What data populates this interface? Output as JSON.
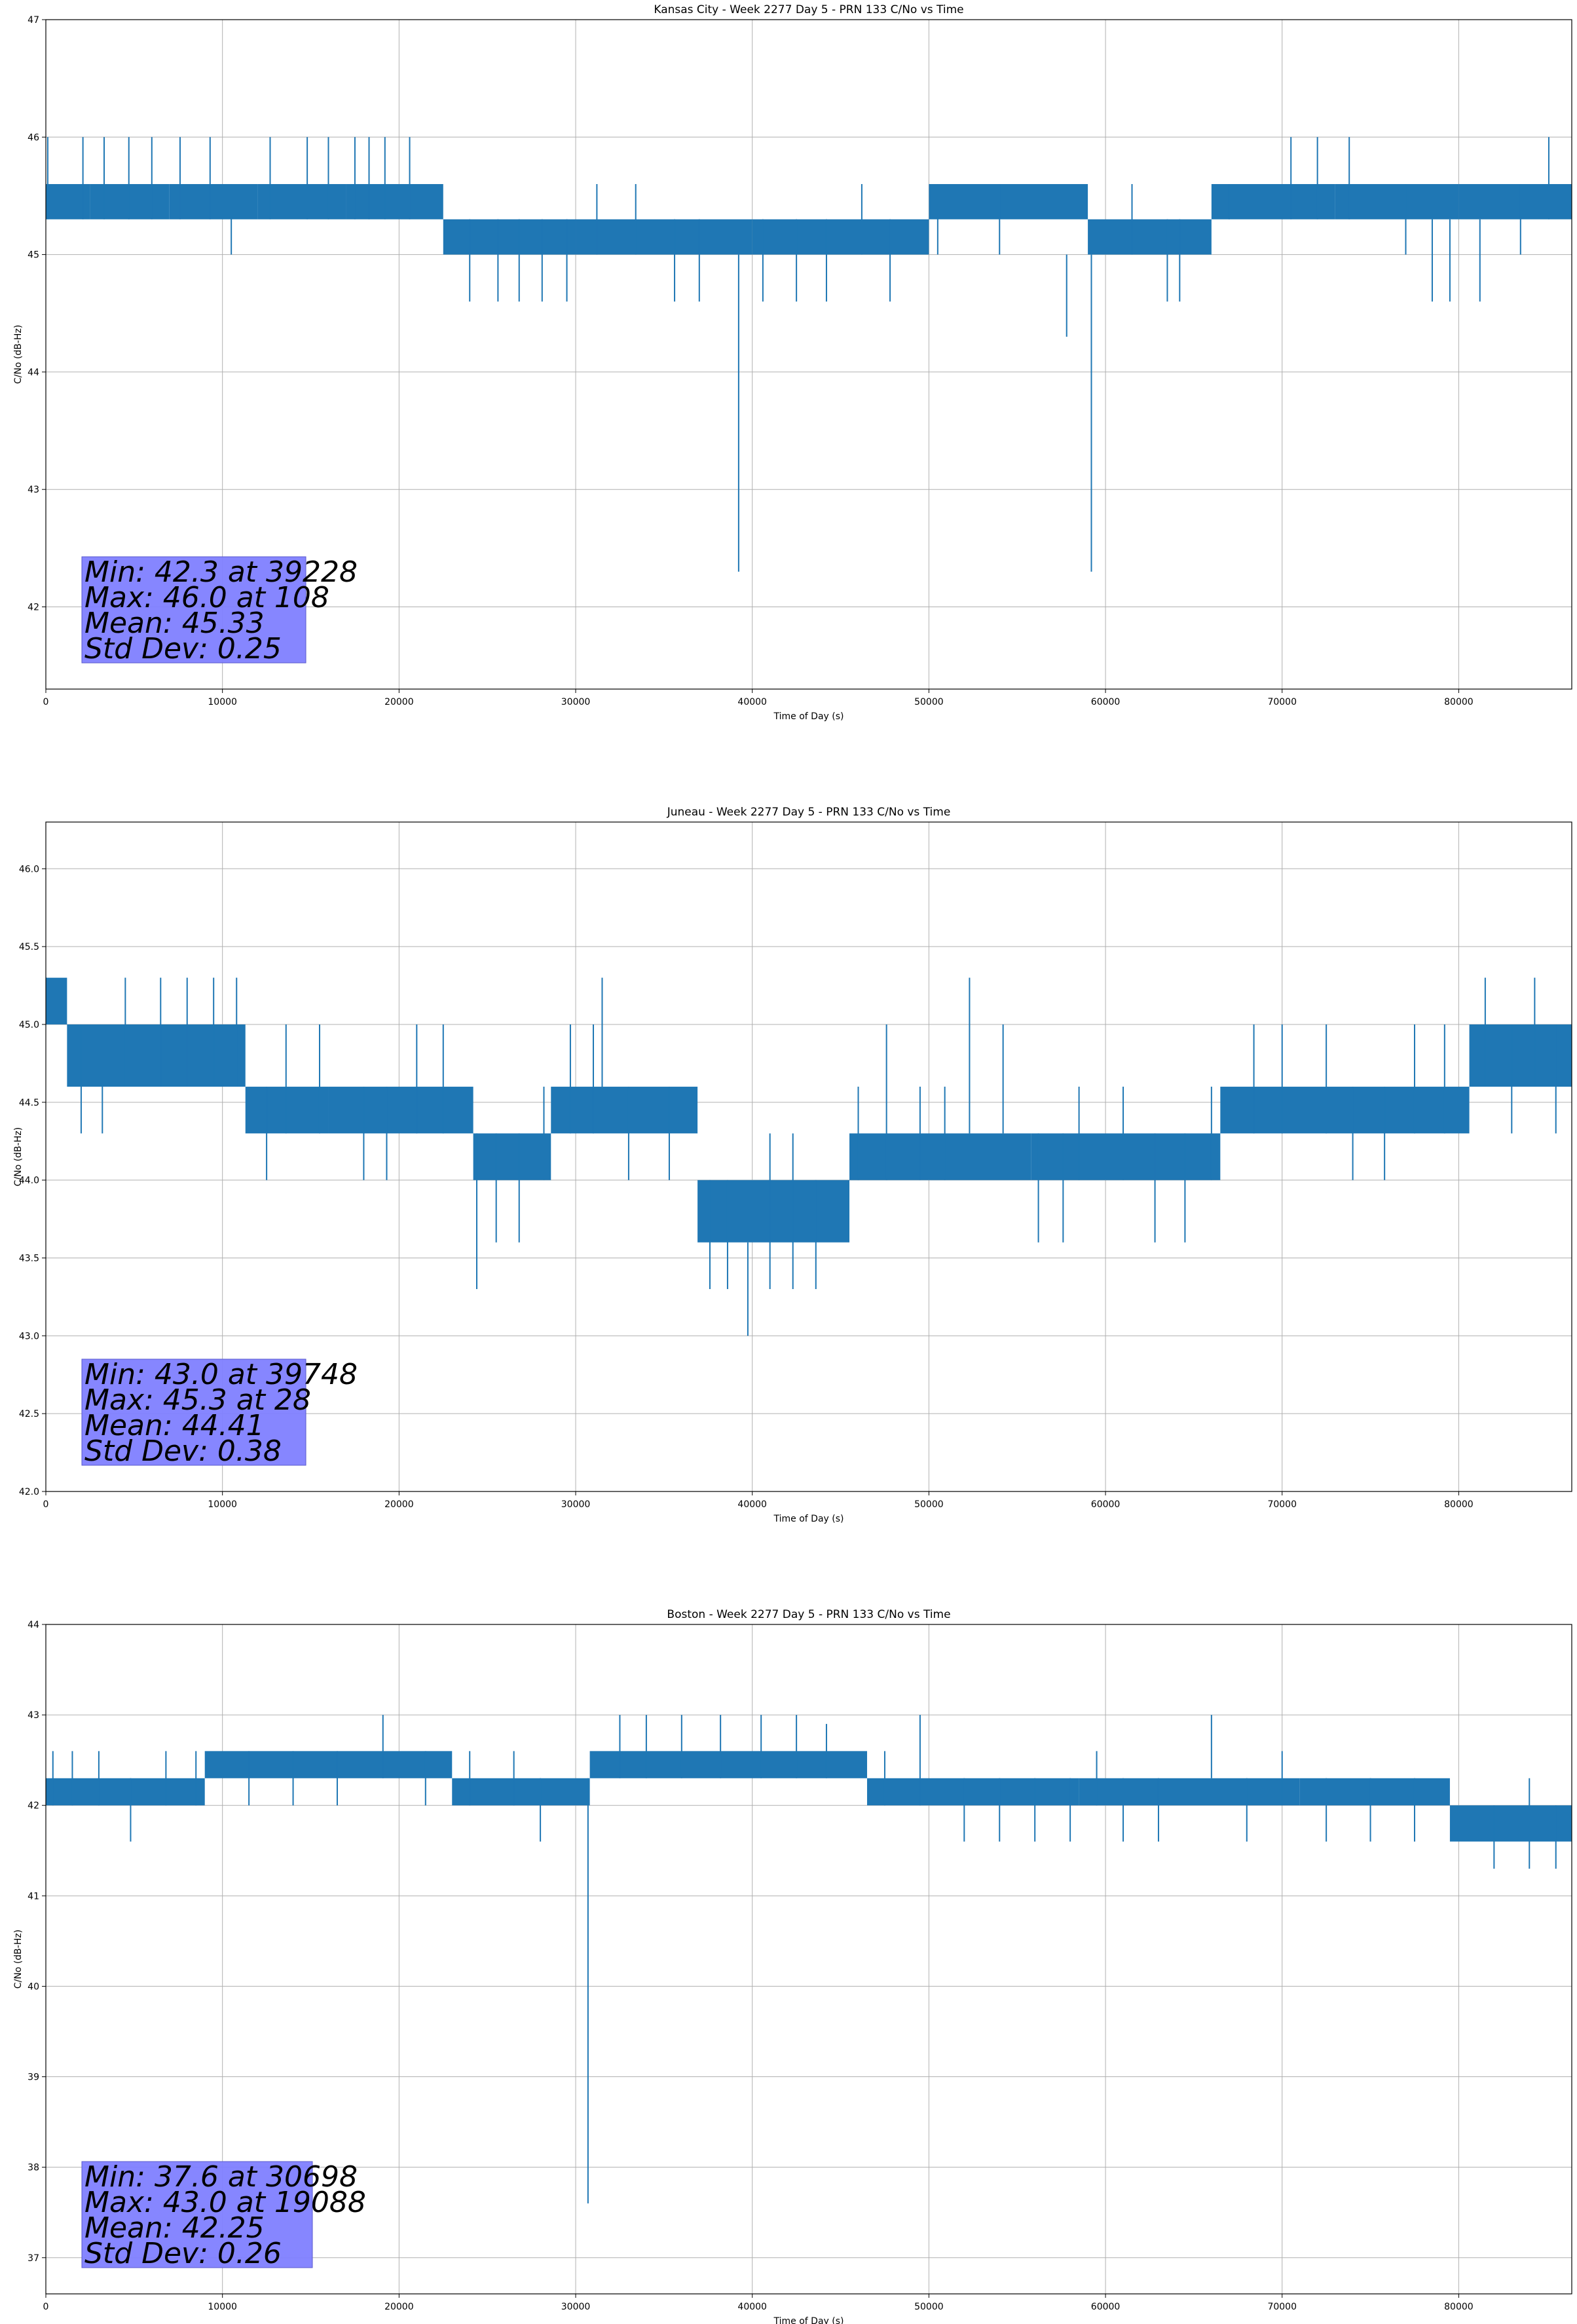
{
  "figure": {
    "accent_color": "#1f77b4",
    "grid_color": "#b0b0b0",
    "statbox_color": "#8080ff"
  },
  "chart_data": [
    {
      "type": "line",
      "title": "Kansas City - Week 2277 Day 5 - PRN 133 C/No vs Time",
      "xlabel": "Time of Day (s)",
      "ylabel": "C/No (dB-Hz)",
      "xlim": [
        0,
        86400
      ],
      "ylim": [
        41.3,
        47
      ],
      "xticks": [
        0,
        10000,
        20000,
        30000,
        40000,
        50000,
        60000,
        70000,
        80000
      ],
      "yticks": [
        42,
        43,
        44,
        45,
        46,
        47
      ],
      "grid": true,
      "stats": [
        "Min: 42.3 at 39228",
        "Max: 46.0 at 108",
        "Mean: 45.33",
        "Std Dev: 0.25"
      ],
      "bands": [
        {
          "x0": 0,
          "x1": 2500,
          "lo": 45.3,
          "hi": 45.6
        },
        {
          "x0": 2500,
          "x1": 7000,
          "lo": 45.3,
          "hi": 45.6
        },
        {
          "x0": 7000,
          "x1": 12000,
          "lo": 45.3,
          "hi": 45.6
        },
        {
          "x0": 12000,
          "x1": 17000,
          "lo": 45.3,
          "hi": 45.6
        },
        {
          "x0": 17000,
          "x1": 22500,
          "lo": 45.3,
          "hi": 45.6
        },
        {
          "x0": 22500,
          "x1": 30000,
          "lo": 45.0,
          "hi": 45.3
        },
        {
          "x0": 30000,
          "x1": 40000,
          "lo": 45.0,
          "hi": 45.3
        },
        {
          "x0": 40000,
          "x1": 50000,
          "lo": 45.0,
          "hi": 45.3
        },
        {
          "x0": 50000,
          "x1": 59000,
          "lo": 45.3,
          "hi": 45.6
        },
        {
          "x0": 59000,
          "x1": 66000,
          "lo": 45.0,
          "hi": 45.3
        },
        {
          "x0": 66000,
          "x1": 73000,
          "lo": 45.3,
          "hi": 45.6
        },
        {
          "x0": 73000,
          "x1": 80000,
          "lo": 45.3,
          "hi": 45.6
        },
        {
          "x0": 80000,
          "x1": 86400,
          "lo": 45.3,
          "hi": 45.6
        }
      ],
      "spikes": [
        {
          "x": 108,
          "lo": 45.3,
          "hi": 46.0
        },
        {
          "x": 2100,
          "lo": 45.3,
          "hi": 46.0
        },
        {
          "x": 3300,
          "lo": 45.3,
          "hi": 46.0
        },
        {
          "x": 4700,
          "lo": 45.3,
          "hi": 46.0
        },
        {
          "x": 6000,
          "lo": 45.3,
          "hi": 46.0
        },
        {
          "x": 7600,
          "lo": 45.3,
          "hi": 46.0
        },
        {
          "x": 9300,
          "lo": 45.3,
          "hi": 46.0
        },
        {
          "x": 10500,
          "lo": 45.0,
          "hi": 45.6
        },
        {
          "x": 12700,
          "lo": 45.3,
          "hi": 46.0
        },
        {
          "x": 14800,
          "lo": 45.3,
          "hi": 46.0
        },
        {
          "x": 16000,
          "lo": 45.3,
          "hi": 46.0
        },
        {
          "x": 17500,
          "lo": 45.3,
          "hi": 46.0
        },
        {
          "x": 18300,
          "lo": 45.3,
          "hi": 46.0
        },
        {
          "x": 19200,
          "lo": 45.3,
          "hi": 46.0
        },
        {
          "x": 20600,
          "lo": 45.3,
          "hi": 46.0
        },
        {
          "x": 24000,
          "lo": 44.6,
          "hi": 45.3
        },
        {
          "x": 25600,
          "lo": 44.6,
          "hi": 45.3
        },
        {
          "x": 26800,
          "lo": 44.6,
          "hi": 45.3
        },
        {
          "x": 28100,
          "lo": 44.6,
          "hi": 45.3
        },
        {
          "x": 29500,
          "lo": 44.6,
          "hi": 45.3
        },
        {
          "x": 31200,
          "lo": 45.0,
          "hi": 45.6
        },
        {
          "x": 33400,
          "lo": 45.0,
          "hi": 45.6
        },
        {
          "x": 35600,
          "lo": 44.6,
          "hi": 45.3
        },
        {
          "x": 37000,
          "lo": 44.6,
          "hi": 45.3
        },
        {
          "x": 39228,
          "lo": 42.3,
          "hi": 45.0
        },
        {
          "x": 40600,
          "lo": 44.6,
          "hi": 45.3
        },
        {
          "x": 42500,
          "lo": 44.6,
          "hi": 45.3
        },
        {
          "x": 44200,
          "lo": 44.6,
          "hi": 45.3
        },
        {
          "x": 46200,
          "lo": 45.0,
          "hi": 45.6
        },
        {
          "x": 47800,
          "lo": 44.6,
          "hi": 45.3
        },
        {
          "x": 50500,
          "lo": 45.0,
          "hi": 45.6
        },
        {
          "x": 54000,
          "lo": 45.0,
          "hi": 45.6
        },
        {
          "x": 57800,
          "lo": 44.3,
          "hi": 45.0
        },
        {
          "x": 59200,
          "lo": 42.3,
          "hi": 45.0
        },
        {
          "x": 61500,
          "lo": 45.0,
          "hi": 45.6
        },
        {
          "x": 63500,
          "lo": 44.6,
          "hi": 45.3
        },
        {
          "x": 64200,
          "lo": 44.6,
          "hi": 45.3
        },
        {
          "x": 67000,
          "lo": 45.3,
          "hi": 45.6
        },
        {
          "x": 70500,
          "lo": 45.3,
          "hi": 46.0
        },
        {
          "x": 72000,
          "lo": 45.3,
          "hi": 46.0
        },
        {
          "x": 73800,
          "lo": 45.3,
          "hi": 46.0
        },
        {
          "x": 77000,
          "lo": 45.0,
          "hi": 45.6
        },
        {
          "x": 78500,
          "lo": 44.6,
          "hi": 45.3
        },
        {
          "x": 79500,
          "lo": 44.6,
          "hi": 45.3
        },
        {
          "x": 81200,
          "lo": 44.6,
          "hi": 45.3
        },
        {
          "x": 83500,
          "lo": 45.0,
          "hi": 45.6
        },
        {
          "x": 85100,
          "lo": 45.3,
          "hi": 46.0
        }
      ]
    },
    {
      "type": "line",
      "title": "Juneau - Week 2277 Day 5 - PRN 133 C/No vs Time",
      "xlabel": "Time of Day (s)",
      "ylabel": "C/No (dB-Hz)",
      "xlim": [
        0,
        86400
      ],
      "ylim": [
        42.0,
        46.3
      ],
      "xticks": [
        0,
        10000,
        20000,
        30000,
        40000,
        50000,
        60000,
        70000,
        80000
      ],
      "yticks": [
        42.0,
        42.5,
        43.0,
        43.5,
        44.0,
        44.5,
        45.0,
        45.5,
        46.0
      ],
      "grid": true,
      "stats": [
        "Min: 43.0 at 39748",
        "Max: 45.3 at 28",
        "Mean: 44.41",
        "Std Dev: 0.38"
      ],
      "bands": [
        {
          "x0": 0,
          "x1": 1200,
          "lo": 45.0,
          "hi": 45.3
        },
        {
          "x0": 1200,
          "x1": 11300,
          "lo": 44.6,
          "hi": 45.0
        },
        {
          "x0": 11300,
          "x1": 16000,
          "lo": 44.3,
          "hi": 44.6
        },
        {
          "x0": 16000,
          "x1": 24200,
          "lo": 44.3,
          "hi": 44.6
        },
        {
          "x0": 24200,
          "x1": 28600,
          "lo": 44.0,
          "hi": 44.3
        },
        {
          "x0": 28600,
          "x1": 36900,
          "lo": 44.3,
          "hi": 44.6
        },
        {
          "x0": 36900,
          "x1": 45500,
          "lo": 43.6,
          "hi": 44.0
        },
        {
          "x0": 45500,
          "x1": 55800,
          "lo": 44.0,
          "hi": 44.3
        },
        {
          "x0": 55800,
          "x1": 66500,
          "lo": 44.0,
          "hi": 44.3
        },
        {
          "x0": 66500,
          "x1": 80600,
          "lo": 44.3,
          "hi": 44.6
        },
        {
          "x0": 80600,
          "x1": 86400,
          "lo": 44.6,
          "hi": 45.0
        }
      ],
      "spikes": [
        {
          "x": 28,
          "lo": 45.0,
          "hi": 45.3
        },
        {
          "x": 2000,
          "lo": 44.3,
          "hi": 45.0
        },
        {
          "x": 3200,
          "lo": 44.3,
          "hi": 45.0
        },
        {
          "x": 4500,
          "lo": 44.6,
          "hi": 45.3
        },
        {
          "x": 6500,
          "lo": 44.6,
          "hi": 45.3
        },
        {
          "x": 8000,
          "lo": 44.6,
          "hi": 45.3
        },
        {
          "x": 9500,
          "lo": 44.6,
          "hi": 45.3
        },
        {
          "x": 10800,
          "lo": 44.6,
          "hi": 45.3
        },
        {
          "x": 12500,
          "lo": 44.0,
          "hi": 44.6
        },
        {
          "x": 13600,
          "lo": 44.3,
          "hi": 45.0
        },
        {
          "x": 15500,
          "lo": 44.3,
          "hi": 45.0
        },
        {
          "x": 18000,
          "lo": 44.0,
          "hi": 44.6
        },
        {
          "x": 19300,
          "lo": 44.0,
          "hi": 44.6
        },
        {
          "x": 21000,
          "lo": 44.3,
          "hi": 45.0
        },
        {
          "x": 22500,
          "lo": 44.3,
          "hi": 45.0
        },
        {
          "x": 24400,
          "lo": 43.3,
          "hi": 44.3
        },
        {
          "x": 25500,
          "lo": 43.6,
          "hi": 44.3
        },
        {
          "x": 26800,
          "lo": 43.6,
          "hi": 44.3
        },
        {
          "x": 28200,
          "lo": 44.0,
          "hi": 44.6
        },
        {
          "x": 29700,
          "lo": 44.3,
          "hi": 45.0
        },
        {
          "x": 31000,
          "lo": 44.3,
          "hi": 45.0
        },
        {
          "x": 31500,
          "lo": 44.6,
          "hi": 45.3
        },
        {
          "x": 33000,
          "lo": 44.0,
          "hi": 44.6
        },
        {
          "x": 35300,
          "lo": 44.0,
          "hi": 44.6
        },
        {
          "x": 37600,
          "lo": 43.3,
          "hi": 44.0
        },
        {
          "x": 38600,
          "lo": 43.3,
          "hi": 44.0
        },
        {
          "x": 39748,
          "lo": 43.0,
          "hi": 43.6
        },
        {
          "x": 41000,
          "lo": 43.3,
          "hi": 44.3
        },
        {
          "x": 42300,
          "lo": 43.3,
          "hi": 44.3
        },
        {
          "x": 43600,
          "lo": 43.3,
          "hi": 44.0
        },
        {
          "x": 46000,
          "lo": 44.0,
          "hi": 44.6
        },
        {
          "x": 47600,
          "lo": 44.0,
          "hi": 45.0
        },
        {
          "x": 49500,
          "lo": 44.0,
          "hi": 44.6
        },
        {
          "x": 50900,
          "lo": 44.0,
          "hi": 44.6
        },
        {
          "x": 52300,
          "lo": 44.3,
          "hi": 45.3
        },
        {
          "x": 54200,
          "lo": 44.3,
          "hi": 45.0
        },
        {
          "x": 56200,
          "lo": 43.6,
          "hi": 44.3
        },
        {
          "x": 57600,
          "lo": 43.6,
          "hi": 44.3
        },
        {
          "x": 58500,
          "lo": 44.0,
          "hi": 44.6
        },
        {
          "x": 61000,
          "lo": 44.0,
          "hi": 44.6
        },
        {
          "x": 62800,
          "lo": 43.6,
          "hi": 44.3
        },
        {
          "x": 64500,
          "lo": 43.6,
          "hi": 44.3
        },
        {
          "x": 66000,
          "lo": 44.0,
          "hi": 44.6
        },
        {
          "x": 68400,
          "lo": 44.3,
          "hi": 45.0
        },
        {
          "x": 70000,
          "lo": 44.3,
          "hi": 45.0
        },
        {
          "x": 72500,
          "lo": 44.3,
          "hi": 45.0
        },
        {
          "x": 74000,
          "lo": 44.0,
          "hi": 44.6
        },
        {
          "x": 75800,
          "lo": 44.0,
          "hi": 44.6
        },
        {
          "x": 77500,
          "lo": 44.3,
          "hi": 45.0
        },
        {
          "x": 79200,
          "lo": 44.3,
          "hi": 45.0
        },
        {
          "x": 81500,
          "lo": 44.6,
          "hi": 45.3
        },
        {
          "x": 83000,
          "lo": 44.3,
          "hi": 45.0
        },
        {
          "x": 84300,
          "lo": 44.6,
          "hi": 45.3
        },
        {
          "x": 85500,
          "lo": 44.3,
          "hi": 45.0
        }
      ]
    },
    {
      "type": "line",
      "title": "Boston - Week 2277 Day 5 - PRN 133 C/No vs Time",
      "xlabel": "Time of Day (s)",
      "ylabel": "C/No (dB-Hz)",
      "xlim": [
        0,
        86400
      ],
      "ylim": [
        36.6,
        44
      ],
      "xticks": [
        0,
        10000,
        20000,
        30000,
        40000,
        50000,
        60000,
        70000,
        80000
      ],
      "yticks": [
        37,
        38,
        39,
        40,
        41,
        42,
        43,
        44
      ],
      "grid": true,
      "stats": [
        "Min: 37.6 at 30698",
        "Max: 43.0 at 19088",
        "Mean: 42.25",
        "Std Dev: 0.26"
      ],
      "bands": [
        {
          "x0": 0,
          "x1": 9000,
          "lo": 42.0,
          "hi": 42.3
        },
        {
          "x0": 9000,
          "x1": 23000,
          "lo": 42.3,
          "hi": 42.6
        },
        {
          "x0": 23000,
          "x1": 30800,
          "lo": 42.0,
          "hi": 42.3
        },
        {
          "x0": 30800,
          "x1": 46500,
          "lo": 42.3,
          "hi": 42.6
        },
        {
          "x0": 46500,
          "x1": 58500,
          "lo": 42.0,
          "hi": 42.3
        },
        {
          "x0": 58500,
          "x1": 71000,
          "lo": 42.0,
          "hi": 42.3
        },
        {
          "x0": 71000,
          "x1": 79500,
          "lo": 42.0,
          "hi": 42.3
        },
        {
          "x0": 79500,
          "x1": 86400,
          "lo": 41.6,
          "hi": 42.0
        }
      ],
      "spikes": [
        {
          "x": 400,
          "lo": 42.0,
          "hi": 42.6
        },
        {
          "x": 1500,
          "lo": 42.0,
          "hi": 42.6
        },
        {
          "x": 3000,
          "lo": 42.0,
          "hi": 42.6
        },
        {
          "x": 4800,
          "lo": 41.6,
          "hi": 42.3
        },
        {
          "x": 6800,
          "lo": 42.0,
          "hi": 42.6
        },
        {
          "x": 8500,
          "lo": 42.0,
          "hi": 42.6
        },
        {
          "x": 11500,
          "lo": 42.0,
          "hi": 42.6
        },
        {
          "x": 14000,
          "lo": 42.0,
          "hi": 42.6
        },
        {
          "x": 16500,
          "lo": 42.0,
          "hi": 42.6
        },
        {
          "x": 19088,
          "lo": 42.3,
          "hi": 43.0
        },
        {
          "x": 21500,
          "lo": 42.0,
          "hi": 42.6
        },
        {
          "x": 24000,
          "lo": 42.0,
          "hi": 42.6
        },
        {
          "x": 26500,
          "lo": 42.0,
          "hi": 42.6
        },
        {
          "x": 28000,
          "lo": 41.6,
          "hi": 42.3
        },
        {
          "x": 30698,
          "lo": 37.6,
          "hi": 42.3
        },
        {
          "x": 32500,
          "lo": 42.3,
          "hi": 43.0
        },
        {
          "x": 34000,
          "lo": 42.3,
          "hi": 43.0
        },
        {
          "x": 36000,
          "lo": 42.3,
          "hi": 43.0
        },
        {
          "x": 38200,
          "lo": 42.3,
          "hi": 43.0
        },
        {
          "x": 40500,
          "lo": 42.3,
          "hi": 43.0
        },
        {
          "x": 42500,
          "lo": 42.3,
          "hi": 43.0
        },
        {
          "x": 44200,
          "lo": 42.3,
          "hi": 42.9
        },
        {
          "x": 47500,
          "lo": 42.0,
          "hi": 42.6
        },
        {
          "x": 49500,
          "lo": 42.0,
          "hi": 43.0
        },
        {
          "x": 52000,
          "lo": 41.6,
          "hi": 42.3
        },
        {
          "x": 54000,
          "lo": 41.6,
          "hi": 42.3
        },
        {
          "x": 56000,
          "lo": 41.6,
          "hi": 42.3
        },
        {
          "x": 58000,
          "lo": 41.6,
          "hi": 42.3
        },
        {
          "x": 59500,
          "lo": 42.0,
          "hi": 42.6
        },
        {
          "x": 61000,
          "lo": 41.6,
          "hi": 42.3
        },
        {
          "x": 63000,
          "lo": 41.6,
          "hi": 42.3
        },
        {
          "x": 66000,
          "lo": 42.3,
          "hi": 43.0
        },
        {
          "x": 68000,
          "lo": 41.6,
          "hi": 42.3
        },
        {
          "x": 70000,
          "lo": 42.0,
          "hi": 42.6
        },
        {
          "x": 72500,
          "lo": 41.6,
          "hi": 42.3
        },
        {
          "x": 75000,
          "lo": 41.6,
          "hi": 42.3
        },
        {
          "x": 77500,
          "lo": 41.6,
          "hi": 42.3
        },
        {
          "x": 82000,
          "lo": 41.3,
          "hi": 42.0
        },
        {
          "x": 84000,
          "lo": 41.3,
          "hi": 42.3
        },
        {
          "x": 85500,
          "lo": 41.3,
          "hi": 42.0
        }
      ]
    }
  ]
}
